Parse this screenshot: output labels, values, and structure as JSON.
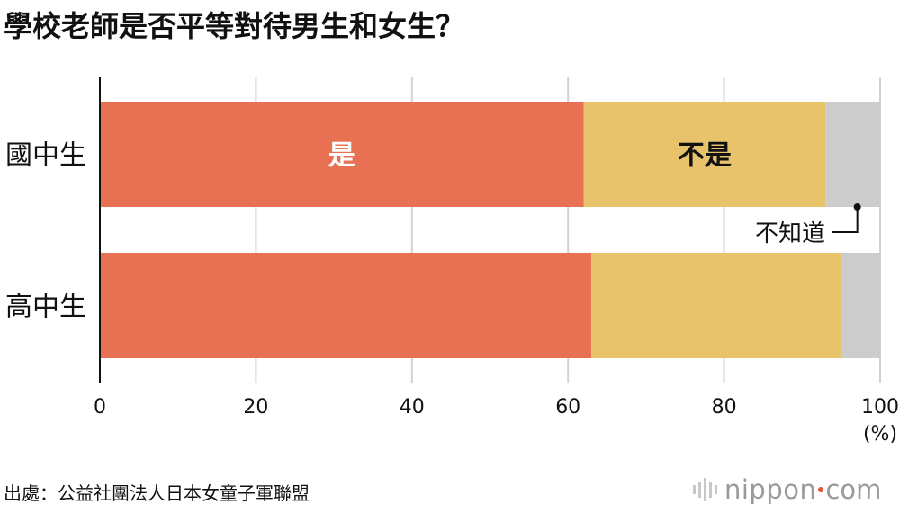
{
  "chart_data": {
    "type": "bar",
    "orientation": "horizontal",
    "stacked": true,
    "title": "學校老師是否平等對待男生和女生？",
    "categories": [
      "國中生",
      "高中生"
    ],
    "series": [
      {
        "name": "是",
        "values": [
          62,
          63
        ],
        "color": "#e87153"
      },
      {
        "name": "不是",
        "values": [
          31,
          32
        ],
        "color": "#e8c36b"
      },
      {
        "name": "不知道",
        "values": [
          7,
          5
        ],
        "color": "#cccccc"
      }
    ],
    "xlim": [
      0,
      100
    ],
    "xticks": [
      "0",
      "20",
      "40",
      "60",
      "80",
      "100"
    ],
    "unit": "(%)",
    "grid": true,
    "legend": "inline labels on first bar"
  },
  "source": "出處：公益社團法人日本女童子軍聯盟",
  "brand": {
    "word": "nippon",
    "tld": "com",
    "dot_color": "#e3543b"
  }
}
